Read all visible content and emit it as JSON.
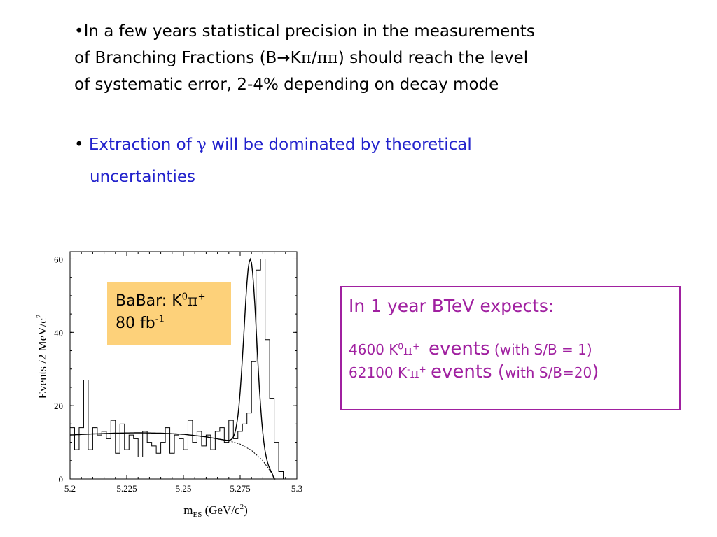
{
  "bullets": {
    "b1_line1": "•In a few years statistical precision in the measurements",
    "b1_line2_a": "of Branching Fractions (B",
    "b1_arrow": "→",
    "b1_line2_b": "K",
    "b1_pi": "π",
    "b1_slash": "/",
    "b1_pipi": "ππ",
    "b1_line2_c": ") should reach the level",
    "b1_line3": "of systematic error, 2-4% depending on decay mode",
    "b2_bullet": "• ",
    "b2_a": "Extraction of ",
    "b2_gamma": "γ",
    "b2_b": " will  be dominated by theoretical",
    "b2_line2": "uncertainties"
  },
  "label_box": {
    "line1": "BaBar: K",
    "sup0": "0",
    "pi": "π",
    "plus": "+",
    "line2": "80 fb",
    "sup_m1": "-1",
    "color": "#fdd17a"
  },
  "expect_box": {
    "title": "In 1 year BTeV expects:",
    "r1_num": "4600 K",
    "r1_sup": "0",
    "r1_pi": "π",
    "r1_plus": "+",
    "r1_events": "events",
    "r1_tail": " (with S/B = 1)",
    "r2_num": "62100 K",
    "r2_sup": "-",
    "r2_pi": "π",
    "r2_plus": "+",
    "r2_events": "events (",
    "r2_tail": "with S/B=20",
    "r2_close": ")",
    "color": "#a020a0"
  },
  "chart_data": {
    "type": "histogram",
    "xlabel_main": "m",
    "xlabel_sub": "ES",
    "xlabel_rest": " (GeV/c",
    "xlabel_sup": "2",
    "xlabel_close": ")",
    "ylabel_main": "Events /2 MeV/c",
    "ylabel_sup": "2",
    "xlim": [
      5.2,
      5.3
    ],
    "ylim": [
      0,
      62
    ],
    "xticks": [
      "5.2",
      "5.225",
      "5.25",
      "5.275",
      "5.3"
    ],
    "xtick_values": [
      5.2,
      5.225,
      5.25,
      5.275,
      5.3
    ],
    "yticks": [
      "0",
      "20",
      "40",
      "60"
    ],
    "ytick_values": [
      0,
      20,
      40,
      60
    ],
    "bin_width": 0.002,
    "bin_start": 5.2,
    "histogram_values": [
      14,
      8,
      14,
      27,
      8,
      14,
      12,
      13,
      11,
      16,
      7,
      15,
      8,
      12,
      11,
      6,
      13,
      10,
      9,
      7,
      10,
      14,
      7,
      12,
      11,
      8,
      16,
      10,
      13,
      9,
      12,
      8,
      13,
      14,
      10,
      16,
      11,
      13,
      15,
      18,
      32,
      57,
      60,
      38,
      22,
      10,
      2,
      0,
      0,
      0
    ],
    "fit_background": "ARGUS-like background curve",
    "fit_signal": "Gaussian peak near 5.279",
    "background_curve": {
      "x": [
        5.2,
        5.21,
        5.22,
        5.23,
        5.24,
        5.25,
        5.26,
        5.27,
        5.275,
        5.28,
        5.285,
        5.289,
        5.29
      ],
      "y": [
        12,
        12.3,
        12.5,
        12.6,
        12.5,
        12.2,
        11.5,
        10.4,
        9.5,
        7.8,
        5.0,
        1.5,
        0
      ]
    },
    "signal_peak": {
      "mean": 5.2795,
      "sigma": 0.0028,
      "height": 52
    }
  }
}
